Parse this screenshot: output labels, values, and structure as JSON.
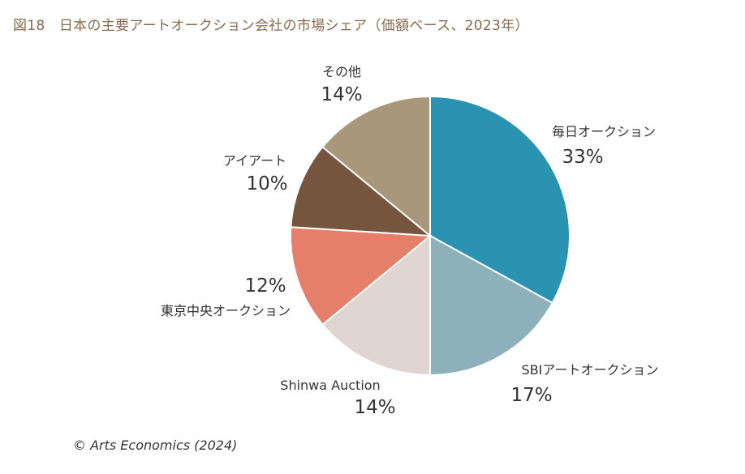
{
  "chart_data": {
    "type": "pie",
    "title": "図18　日本の主要アートオークション会社の市場シェア（価額ベース、2023年）",
    "source": "© Arts Economics (2024)",
    "slices": [
      {
        "label": "毎日オークション",
        "value": 33,
        "value_label": "33%",
        "color": "#2a93b1"
      },
      {
        "label": "SBIアートオークション",
        "value": 17,
        "value_label": "17%",
        "color": "#8db1ba"
      },
      {
        "label": "Shinwa Auction",
        "value": 14,
        "value_label": "14%",
        "color": "#e1d5d1"
      },
      {
        "label": "東京中央オークション",
        "value": 12,
        "value_label": "12%",
        "color": "#e57f69"
      },
      {
        "label": "アイアート",
        "value": 10,
        "value_label": "10%",
        "color": "#76553f"
      },
      {
        "label": "その他",
        "value": 14,
        "value_label": "14%",
        "color": "#a9977b"
      }
    ]
  }
}
